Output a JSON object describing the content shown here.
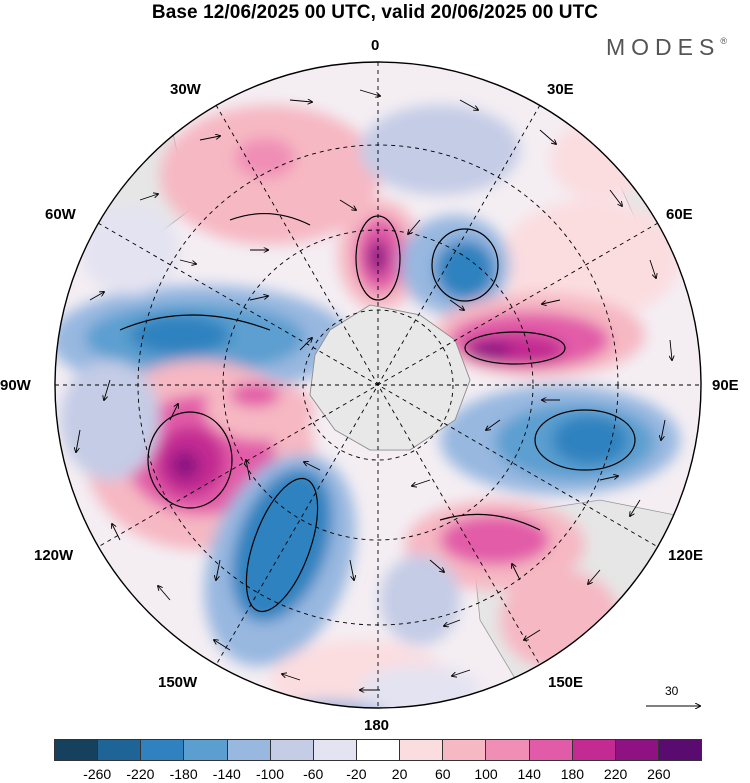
{
  "title": "Base 12/06/2025 00 UTC, valid 20/06/2025 00 UTC",
  "brand": "MODES",
  "brand_mark": "®",
  "longitude_labels": {
    "n": "0",
    "ne30": "30E",
    "ne60": "60E",
    "e": "90E",
    "se120": "120E",
    "se150": "150E",
    "s": "180",
    "sw150": "150W",
    "sw120": "120W",
    "w": "90W",
    "nw60": "60W",
    "nw30": "30W"
  },
  "reference_vector": {
    "value": "30"
  },
  "colorbar": {
    "colors": [
      "#15405e",
      "#1f6496",
      "#2f82bf",
      "#5b9fd0",
      "#98b8e0",
      "#c4cce6",
      "#e4e3f1",
      "#ffffff",
      "#fbdde0",
      "#f6b8c3",
      "#f08eb6",
      "#e25ba8",
      "#c32b92",
      "#8f1283",
      "#5a0b6f"
    ],
    "ticks": [
      "-260",
      "-220",
      "-180",
      "-140",
      "-100",
      "-60",
      "-20",
      "20",
      "60",
      "100",
      "140",
      "180",
      "220",
      "260"
    ]
  }
}
